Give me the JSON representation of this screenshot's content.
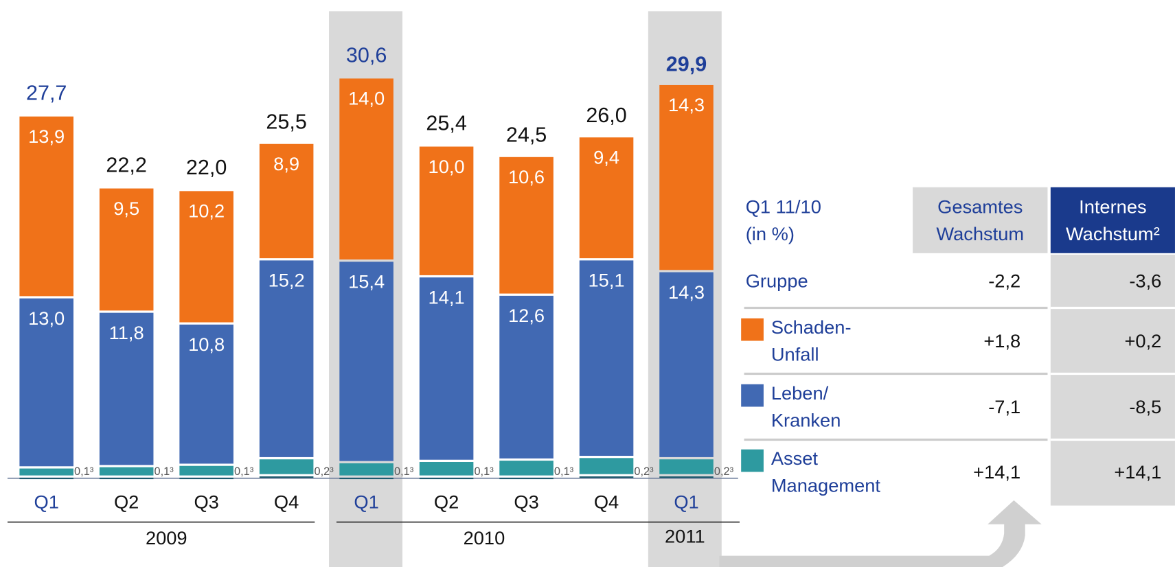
{
  "chart_data": {
    "type": "stacked_bar",
    "categories": [
      "Q1",
      "Q2",
      "Q3",
      "Q4",
      "Q1",
      "Q2",
      "Q3",
      "Q4",
      "Q1"
    ],
    "category_colors": [
      "#1f3f99",
      "#111111",
      "#111111",
      "#111111",
      "#1f3f99",
      "#111111",
      "#111111",
      "#111111",
      "#1f3f99"
    ],
    "groups": [
      "2009",
      "2010",
      "2011"
    ],
    "ylim": [
      0,
      36
    ],
    "series": [
      {
        "color": "#1d5a6e",
        "values": [
          0.1,
          0.1,
          0.1,
          0.2,
          0.1,
          0.1,
          0.1,
          0.2,
          0.2
        ],
        "value_labels": [
          "0,1³",
          "0,1³",
          "0,1³",
          "0,2³",
          "0,1³",
          "0,1³",
          "0,1³",
          "0,2³",
          "0,2³"
        ]
      },
      {
        "name": "Asset\nManagement",
        "color": "#2e9aa0",
        "values": [
          0.7,
          0.8,
          0.9,
          1.3,
          1.1,
          1.2,
          1.3,
          1.4,
          1.3
        ],
        "value_labels": [
          "0,7",
          "0,8",
          "0,9",
          "1,3",
          "1,1",
          "1,2",
          "1,3",
          "1,4",
          "1,3"
        ]
      },
      {
        "name": "Leben/\nKranken",
        "color": "#4169b3",
        "values": [
          13.0,
          11.8,
          10.8,
          15.2,
          15.4,
          14.1,
          12.6,
          15.1,
          14.3
        ],
        "value_labels": [
          "13,0",
          "11,8",
          "10,8",
          "15,2",
          "15,4",
          "14,1",
          "12,6",
          "15,1",
          "14,3"
        ]
      },
      {
        "name": "Schaden-\nUnfall",
        "color": "#f07219",
        "values": [
          13.9,
          9.5,
          10.2,
          8.9,
          14.0,
          10.0,
          10.6,
          9.4,
          14.3
        ],
        "value_labels": [
          "13,9",
          "9,5",
          "10,2",
          "8,9",
          "14,0",
          "10,0",
          "10,6",
          "9,4",
          "14,3"
        ]
      }
    ],
    "totals": [
      27.7,
      22.2,
      22.0,
      25.5,
      30.6,
      25.4,
      24.5,
      26.0,
      29.9
    ],
    "total_labels": [
      "27,7",
      "22,2",
      "22,0",
      "25,5",
      "30,6",
      "25,4",
      "24,5",
      "26,0",
      "29,9"
    ],
    "total_colors": [
      "#1f3f99",
      "#111111",
      "#111111",
      "#111111",
      "#1f3f99",
      "#111111",
      "#111111",
      "#111111",
      "#1f3f99"
    ],
    "total_bold": [
      false,
      false,
      false,
      false,
      false,
      false,
      false,
      false,
      true
    ]
  },
  "table": {
    "title": "Q1 11/10\n(in %)",
    "columns": [
      "Gesamtes\nWachstum",
      "Internes\nWachstum²"
    ],
    "rows": [
      {
        "label": "Gruppe",
        "values": [
          "-2,2",
          "-3,6"
        ]
      },
      {
        "values": [
          "+1,8",
          "+0,2"
        ]
      },
      {
        "values": [
          "-7,1",
          "-8,5"
        ]
      },
      {
        "values": [
          "+14,1",
          "+14,1"
        ]
      }
    ]
  }
}
